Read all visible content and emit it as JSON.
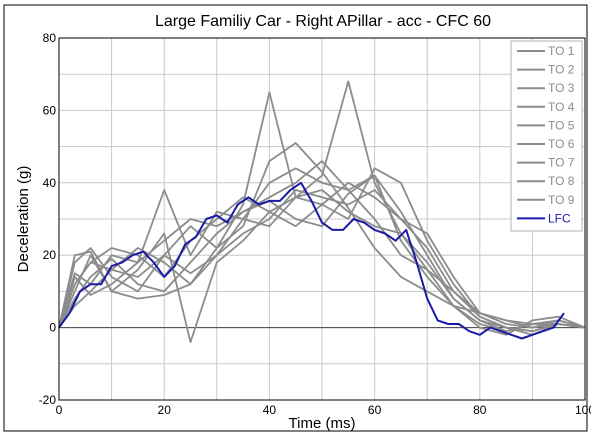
{
  "chart_data": {
    "type": "line",
    "title": "Large Familiy Car - Right APillar - acc - CFC 60",
    "xlabel": "Time (ms)",
    "ylabel": "Deceleration (g)",
    "xlim": [
      0,
      100
    ],
    "ylim": [
      -20,
      80
    ],
    "x_ticks": [
      0,
      20,
      40,
      60,
      80,
      100
    ],
    "y_ticks": [
      -20,
      0,
      20,
      40,
      60,
      80
    ],
    "x_tick_labels": [
      "0",
      "20",
      "40",
      "60",
      "80",
      "100"
    ],
    "y_tick_labels": [
      "-20",
      "0",
      "20",
      "40",
      "60",
      "80"
    ],
    "grid": true,
    "legend_position": "top-right",
    "colors": {
      "TO": "#8c8c8c",
      "LFC": "#1a1aa6"
    },
    "series": [
      {
        "name": "TO 1",
        "x": [
          0,
          3,
          6,
          10,
          15,
          20,
          25,
          30,
          35,
          40,
          45,
          50,
          55,
          60,
          65,
          70,
          75,
          80,
          85,
          90,
          95,
          100
        ],
        "y": [
          0,
          12,
          18,
          16,
          14,
          20,
          15,
          20,
          26,
          30,
          38,
          36,
          34,
          38,
          30,
          22,
          10,
          4,
          2,
          1,
          1,
          0
        ]
      },
      {
        "name": "TO 2",
        "x": [
          0,
          3,
          6,
          10,
          15,
          20,
          25,
          30,
          35,
          40,
          45,
          50,
          55,
          60,
          65,
          70,
          75,
          80,
          85,
          90,
          95,
          100
        ],
        "y": [
          0,
          8,
          14,
          19,
          12,
          10,
          18,
          26,
          32,
          35,
          30,
          28,
          37,
          42,
          32,
          20,
          8,
          2,
          0,
          -1,
          1,
          0
        ]
      },
      {
        "name": "TO 3",
        "x": [
          0,
          3,
          6,
          10,
          15,
          20,
          25,
          30,
          35,
          40,
          45,
          50,
          55,
          60,
          65,
          70,
          75,
          80,
          85,
          90,
          95,
          100
        ],
        "y": [
          0,
          18,
          22,
          14,
          10,
          20,
          28,
          22,
          34,
          65,
          36,
          42,
          68,
          40,
          26,
          16,
          6,
          0,
          -2,
          2,
          3,
          0
        ]
      },
      {
        "name": "TO 4",
        "x": [
          0,
          3,
          6,
          10,
          15,
          20,
          25,
          30,
          35,
          40,
          45,
          50,
          55,
          60,
          65,
          70,
          75,
          80,
          85,
          90,
          95,
          100
        ],
        "y": [
          0,
          15,
          12,
          20,
          18,
          38,
          20,
          32,
          30,
          40,
          44,
          40,
          38,
          42,
          24,
          14,
          6,
          1,
          -1,
          1,
          2,
          0
        ]
      },
      {
        "name": "TO 5",
        "x": [
          0,
          3,
          6,
          10,
          15,
          20,
          25,
          30,
          35,
          40,
          45,
          50,
          55,
          60,
          65,
          70,
          75,
          80,
          85,
          90,
          95,
          100
        ],
        "y": [
          0,
          10,
          20,
          10,
          8,
          9,
          12,
          22,
          28,
          46,
          51,
          43,
          33,
          22,
          14,
          10,
          6,
          4,
          2,
          0,
          1,
          0
        ]
      },
      {
        "name": "TO 6",
        "x": [
          0,
          3,
          6,
          10,
          15,
          20,
          25,
          30,
          35,
          40,
          45,
          50,
          55,
          60,
          65,
          70,
          75,
          80,
          85,
          90,
          95,
          100
        ],
        "y": [
          0,
          20,
          21,
          10,
          16,
          26,
          -4,
          18,
          24,
          32,
          36,
          34,
          30,
          44,
          40,
          24,
          12,
          3,
          0,
          -2,
          1,
          0
        ]
      },
      {
        "name": "TO 7",
        "x": [
          0,
          3,
          6,
          10,
          15,
          20,
          25,
          30,
          35,
          40,
          45,
          50,
          55,
          60,
          65,
          70,
          75,
          80,
          85,
          90,
          95,
          100
        ],
        "y": [
          0,
          12,
          18,
          22,
          20,
          14,
          24,
          30,
          36,
          32,
          28,
          34,
          40,
          36,
          30,
          26,
          14,
          4,
          1,
          0,
          2,
          0
        ]
      },
      {
        "name": "TO 8",
        "x": [
          0,
          3,
          6,
          10,
          15,
          20,
          25,
          30,
          35,
          40,
          45,
          50,
          55,
          60,
          65,
          70,
          75,
          80,
          85,
          90,
          95,
          100
        ],
        "y": [
          0,
          6,
          10,
          16,
          22,
          18,
          12,
          20,
          30,
          28,
          36,
          38,
          32,
          28,
          26,
          18,
          8,
          2,
          -1,
          1,
          1,
          0
        ]
      },
      {
        "name": "TO 9",
        "x": [
          0,
          3,
          6,
          10,
          15,
          20,
          25,
          30,
          35,
          40,
          45,
          50,
          55,
          60,
          65,
          70,
          75,
          80,
          85,
          90,
          95,
          100
        ],
        "y": [
          0,
          14,
          9,
          12,
          18,
          24,
          30,
          28,
          32,
          36,
          40,
          46,
          38,
          30,
          20,
          16,
          10,
          3,
          0,
          -1,
          1,
          0
        ]
      },
      {
        "name": "LFC",
        "x": [
          0,
          2,
          4,
          6,
          8,
          10,
          12,
          14,
          16,
          18,
          20,
          22,
          24,
          26,
          28,
          30,
          32,
          34,
          36,
          38,
          40,
          42,
          44,
          46,
          48,
          50,
          52,
          54,
          56,
          58,
          60,
          62,
          64,
          66,
          68,
          70,
          72,
          74,
          76,
          78,
          80,
          82,
          84,
          86,
          88,
          90,
          92,
          94,
          96
        ],
        "y": [
          0,
          4,
          10,
          12,
          12,
          17,
          18,
          20,
          21,
          18,
          14,
          17,
          23,
          25,
          30,
          31,
          29,
          34,
          36,
          34,
          35,
          35,
          38,
          40,
          35,
          29,
          27,
          27,
          30,
          29,
          27,
          26,
          24,
          27,
          18,
          8,
          2,
          1,
          1,
          -1,
          -2,
          0,
          -1,
          -2,
          -3,
          -2,
          -1,
          0,
          4
        ]
      }
    ]
  }
}
